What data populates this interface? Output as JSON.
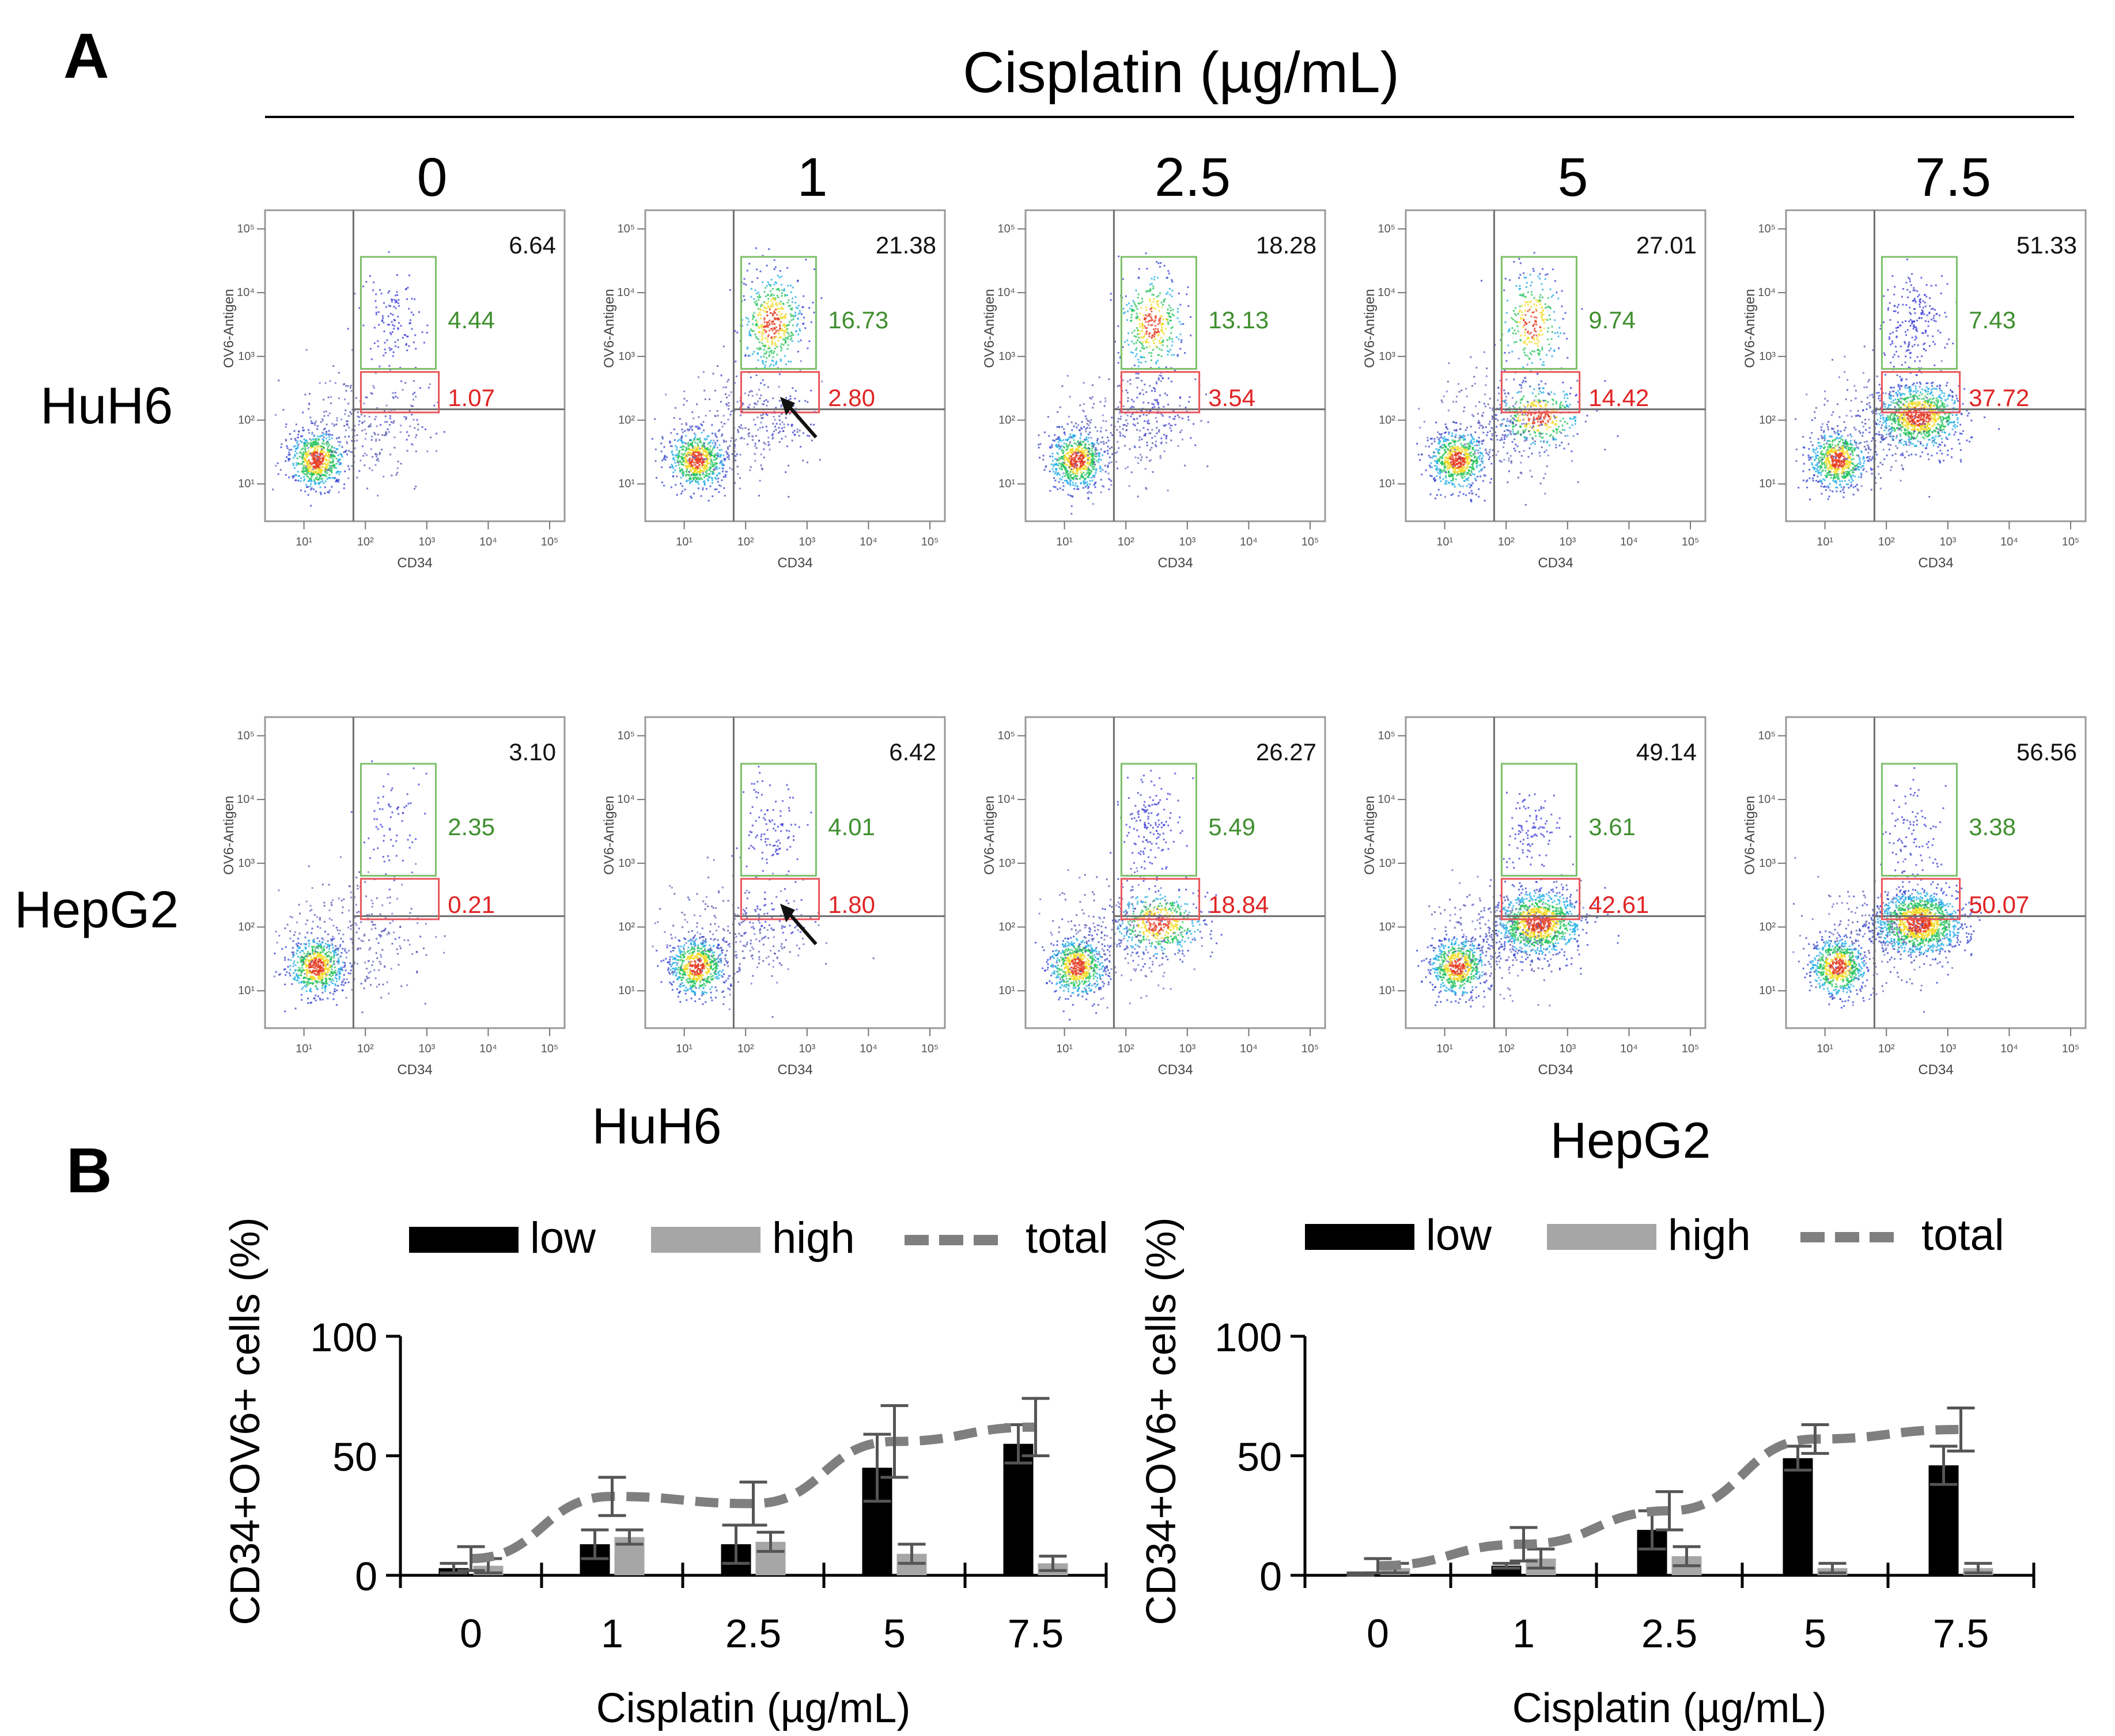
{
  "colors": {
    "gate_green": "#7dbf6a",
    "gate_red": "#e8555a",
    "text_green": "#3f8f2f",
    "text_red": "#e02424",
    "bar_low": "#000000",
    "bar_high": "#a6a6a6",
    "line_total": "#7f7f7f",
    "axis": "#000000"
  },
  "panel_a": {
    "label": "A",
    "header": "Cisplatin (µg/mL)",
    "doses": [
      "0",
      "1",
      "2.5",
      "5",
      "7.5"
    ],
    "plot_axis_x": "CD34",
    "plot_axis_y": "OV6-Antigen",
    "tick_labels": [
      "10¹",
      "10²",
      "10³",
      "10⁴",
      "10⁵"
    ],
    "rows": [
      {
        "name": "HuH6",
        "plots": [
          {
            "total": "6.64",
            "high": "4.44",
            "low": "1.07",
            "arrow": false
          },
          {
            "total": "21.38",
            "high": "16.73",
            "low": "2.80",
            "arrow": true
          },
          {
            "total": "18.28",
            "high": "13.13",
            "low": "3.54",
            "arrow": false
          },
          {
            "total": "27.01",
            "high": "9.74",
            "low": "14.42",
            "arrow": false
          },
          {
            "total": "51.33",
            "high": "7.43",
            "low": "37.72",
            "arrow": false
          }
        ]
      },
      {
        "name": "HepG2",
        "plots": [
          {
            "total": "3.10",
            "high": "2.35",
            "low": "0.21",
            "arrow": false
          },
          {
            "total": "6.42",
            "high": "4.01",
            "low": "1.80",
            "arrow": true
          },
          {
            "total": "26.27",
            "high": "5.49",
            "low": "18.84",
            "arrow": false
          },
          {
            "total": "49.14",
            "high": "3.61",
            "low": "42.61",
            "arrow": false
          },
          {
            "total": "56.56",
            "high": "3.38",
            "low": "50.07",
            "arrow": false
          }
        ]
      }
    ]
  },
  "panel_b": {
    "label": "B"
  },
  "chart_data": [
    {
      "type": "bar",
      "title": "HuH6",
      "categories": [
        "0",
        "1",
        "2.5",
        "5",
        "7.5"
      ],
      "xlabel": "Cisplatin (µg/mL)",
      "ylabel": "CD34+OV6+ cells (%)",
      "ylim": [
        0,
        100
      ],
      "yticks": [
        "0",
        "50",
        "100"
      ],
      "legend": [
        "low",
        "high",
        "total"
      ],
      "series": [
        {
          "name": "low",
          "kind": "bar",
          "values": [
            3,
            13,
            13,
            45,
            55
          ],
          "errors": [
            2,
            6,
            8,
            14,
            8
          ]
        },
        {
          "name": "high",
          "kind": "bar",
          "values": [
            4,
            16,
            14,
            9,
            5
          ],
          "errors": [
            3,
            3,
            4,
            4,
            3
          ]
        },
        {
          "name": "total",
          "kind": "dashed-line",
          "values": [
            7,
            33,
            30,
            56,
            62
          ],
          "errors": [
            5,
            8,
            9,
            15,
            12
          ]
        }
      ]
    },
    {
      "type": "bar",
      "title": "HepG2",
      "categories": [
        "0",
        "1",
        "2.5",
        "5",
        "7.5"
      ],
      "xlabel": "Cisplatin (µg/mL)",
      "ylabel": "CD34+OV6+ cells (%)",
      "ylim": [
        0,
        100
      ],
      "yticks": [
        "0",
        "50",
        "100"
      ],
      "legend": [
        "low",
        "high",
        "total"
      ],
      "series": [
        {
          "name": "low",
          "kind": "bar",
          "values": [
            0.5,
            4,
            19,
            49,
            46
          ],
          "errors": [
            0.5,
            1,
            8,
            5,
            8
          ]
        },
        {
          "name": "high",
          "kind": "bar",
          "values": [
            3,
            7,
            8,
            3,
            3
          ],
          "errors": [
            2,
            4,
            4,
            2,
            2
          ]
        },
        {
          "name": "total",
          "kind": "dashed-line",
          "values": [
            4,
            13,
            27,
            57,
            61
          ],
          "errors": [
            3,
            7,
            8,
            6,
            9
          ]
        }
      ]
    }
  ]
}
